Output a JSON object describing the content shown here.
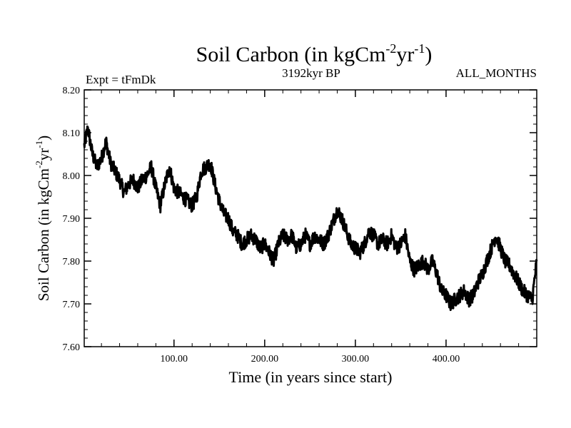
{
  "chart_data": {
    "type": "line",
    "title": "Soil Carbon (in kgCm",
    "title_sup1": "-2",
    "title_mid": "yr",
    "title_sup2": "-1",
    "title_end": ")",
    "subtitle_left": "Expt = tFmDk",
    "subtitle_center": "3192kyr BP",
    "subtitle_right": "ALL_MONTHS",
    "xlabel": "Time (in years since start)",
    "ylabel": "Soil Carbon (in kgCm",
    "ylabel_sup1": "-2",
    "ylabel_mid": "yr",
    "ylabel_sup2": "-1",
    "ylabel_end": ")",
    "xlim": [
      1,
      500
    ],
    "ylim": [
      7.6,
      8.2
    ],
    "xticks": [
      100,
      200,
      300,
      400
    ],
    "xtick_labels": [
      "100.00",
      "200.00",
      "300.00",
      "400.00"
    ],
    "yticks": [
      7.6,
      7.7,
      7.8,
      7.9,
      8.0,
      8.1,
      8.2
    ],
    "ytick_labels": [
      "7.60",
      "7.70",
      "7.80",
      "7.90",
      "8.00",
      "8.10",
      "8.20"
    ],
    "grid": false,
    "series": [
      {
        "name": "Soil Carbon",
        "color": "#000000",
        "x": [
          1,
          5,
          10,
          15,
          20,
          25,
          30,
          35,
          40,
          45,
          50,
          55,
          60,
          65,
          70,
          75,
          80,
          85,
          90,
          95,
          100,
          105,
          110,
          115,
          120,
          125,
          130,
          135,
          140,
          145,
          150,
          155,
          160,
          165,
          170,
          175,
          180,
          185,
          190,
          195,
          200,
          205,
          210,
          215,
          220,
          225,
          230,
          235,
          240,
          245,
          250,
          255,
          260,
          265,
          270,
          275,
          280,
          285,
          290,
          295,
          300,
          305,
          310,
          315,
          320,
          325,
          330,
          335,
          340,
          345,
          350,
          355,
          360,
          365,
          370,
          375,
          380,
          385,
          390,
          395,
          400,
          405,
          410,
          415,
          420,
          425,
          430,
          435,
          440,
          445,
          450,
          455,
          460,
          465,
          470,
          475,
          480,
          485,
          490,
          495,
          500
        ],
        "values": [
          8.07,
          8.11,
          8.05,
          8.02,
          8.04,
          8.08,
          8.03,
          8.01,
          7.99,
          7.96,
          7.98,
          7.99,
          7.97,
          7.99,
          8.0,
          8.02,
          7.97,
          7.93,
          7.98,
          8.02,
          7.97,
          7.96,
          7.95,
          7.94,
          7.93,
          7.95,
          8.01,
          8.02,
          8.03,
          7.98,
          7.94,
          7.91,
          7.9,
          7.87,
          7.86,
          7.84,
          7.85,
          7.86,
          7.85,
          7.83,
          7.84,
          7.82,
          7.8,
          7.84,
          7.86,
          7.85,
          7.86,
          7.83,
          7.84,
          7.86,
          7.84,
          7.86,
          7.85,
          7.84,
          7.86,
          7.89,
          7.92,
          7.9,
          7.87,
          7.84,
          7.83,
          7.82,
          7.84,
          7.87,
          7.86,
          7.84,
          7.85,
          7.84,
          7.86,
          7.83,
          7.84,
          7.86,
          7.8,
          7.78,
          7.79,
          7.8,
          7.78,
          7.8,
          7.77,
          7.73,
          7.72,
          7.7,
          7.71,
          7.72,
          7.73,
          7.71,
          7.72,
          7.75,
          7.77,
          7.8,
          7.83,
          7.86,
          7.83,
          7.8,
          7.79,
          7.77,
          7.75,
          7.73,
          7.72,
          7.71,
          7.8
        ]
      }
    ]
  }
}
